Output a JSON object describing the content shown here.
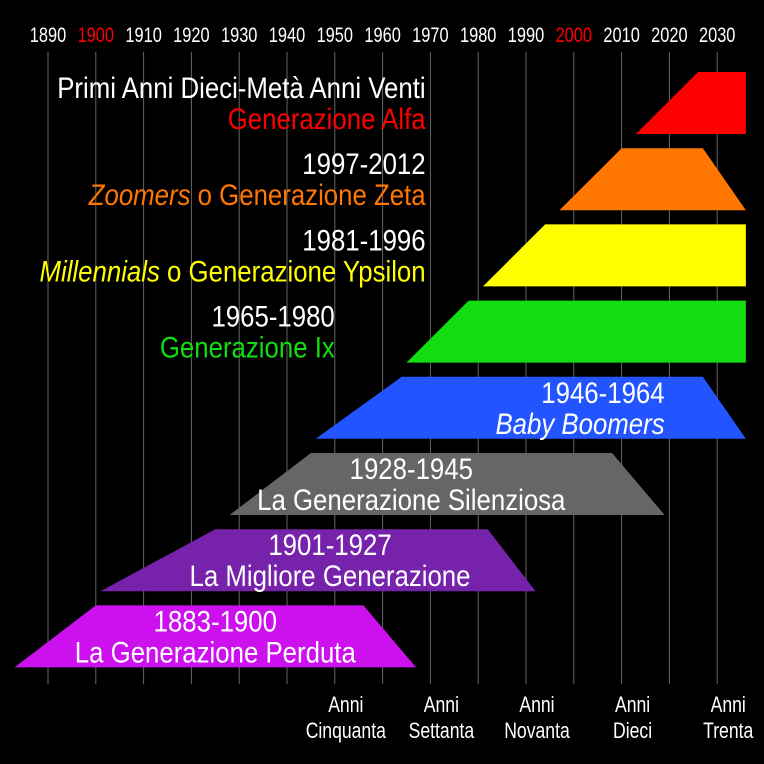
{
  "timeline": {
    "years": [
      {
        "label": "1890",
        "value": 1890
      },
      {
        "label": "1900",
        "value": 1900,
        "highlight": true
      },
      {
        "label": "1910",
        "value": 1910
      },
      {
        "label": "1920",
        "value": 1920
      },
      {
        "label": "1930",
        "value": 1930
      },
      {
        "label": "1940",
        "value": 1940
      },
      {
        "label": "1950",
        "value": 1950
      },
      {
        "label": "1960",
        "value": 1960
      },
      {
        "label": "1970",
        "value": 1970
      },
      {
        "label": "1980",
        "value": 1980
      },
      {
        "label": "1990",
        "value": 1990
      },
      {
        "label": "2000",
        "value": 2000,
        "highlight": true
      },
      {
        "label": "2010",
        "value": 2010
      },
      {
        "label": "2020",
        "value": 2020
      },
      {
        "label": "2030",
        "value": 2030
      }
    ],
    "year_color": "#ffffff",
    "highlight_color": "#ff0000",
    "gridline_color": "#666666"
  },
  "decades": [
    {
      "line1": "Anni",
      "line2": "Cinquanta",
      "center_year": 1950
    },
    {
      "line1": "Anni",
      "line2": "Settanta",
      "center_year": 1970
    },
    {
      "line1": "Anni",
      "line2": "Novanta",
      "center_year": 1990
    },
    {
      "line1": "Anni",
      "line2": "Dieci",
      "center_year": 2010
    },
    {
      "line1": "Anni",
      "line2": "Trenta",
      "center_year": 2030
    }
  ],
  "generations": [
    {
      "id": "alfa",
      "color": "#ff0000",
      "span": {
        "start_bottom": 2013,
        "start_top": 2026,
        "end_top": 2036,
        "end_bottom": 2036
      },
      "label_years": "Primi Anni Dieci-Metà Anni Venti",
      "label_name": [
        {
          "text": "Generazione Alfa",
          "italic": false
        }
      ],
      "years_color": "#ffffff",
      "name_color": "#ff0000",
      "label_anchor": "end",
      "label_year_pos": 1969
    },
    {
      "id": "zeta",
      "color": "#ff7700",
      "span": {
        "start_bottom": 1997,
        "start_top": 2010,
        "end_top": 2027,
        "end_bottom": 2036
      },
      "label_years": "1997-2012",
      "label_name": [
        {
          "text": "Zoomers",
          "italic": true
        },
        {
          "text": " o Generazione Zeta",
          "italic": false
        }
      ],
      "years_color": "#ffffff",
      "name_color": "#ff7700",
      "label_anchor": "end",
      "label_year_pos": 1969
    },
    {
      "id": "ypsilon",
      "color": "#ffff00",
      "span": {
        "start_bottom": 1981,
        "start_top": 1994,
        "end_top": 2036,
        "end_bottom": 2036
      },
      "label_years": "1981-1996",
      "label_name": [
        {
          "text": "Millennials",
          "italic": true
        },
        {
          "text": " o Generazione Ypsilon",
          "italic": false
        }
      ],
      "years_color": "#ffffff",
      "name_color": "#ffff00",
      "label_anchor": "end",
      "label_year_pos": 1969
    },
    {
      "id": "ix",
      "color": "#11dd11",
      "span": {
        "start_bottom": 1965,
        "start_top": 1978,
        "end_top": 2036,
        "end_bottom": 2036
      },
      "label_years": "1965-1980",
      "label_name": [
        {
          "text": "Generazione Ix",
          "italic": false
        }
      ],
      "years_color": "#ffffff",
      "name_color": "#11dd11",
      "label_anchor": "end",
      "label_year_pos": 1950
    },
    {
      "id": "boomers",
      "color": "#2255ff",
      "span": {
        "start_bottom": 1946,
        "start_top": 1964,
        "end_top": 2027,
        "end_bottom": 2036
      },
      "label_years": "1946-1964",
      "label_name": [
        {
          "text": "Baby Boomers",
          "italic": true
        }
      ],
      "years_color": "#ffffff",
      "name_color": "#ffffff",
      "label_anchor": "end",
      "label_year_pos": 2019
    },
    {
      "id": "silenziosa",
      "color": "#666666",
      "span": {
        "start_bottom": 1928,
        "start_top": 1945,
        "end_top": 2008,
        "end_bottom": 2019
      },
      "label_years": "1928-1945",
      "label_name": [
        {
          "text": "La Generazione Silenziosa",
          "italic": false
        }
      ],
      "years_color": "#ffffff",
      "name_color": "#ffffff",
      "label_anchor": "middle",
      "label_year_pos": 1966
    },
    {
      "id": "migliore",
      "color": "#7722aa",
      "span": {
        "start_bottom": 1901,
        "start_top": 1925,
        "end_top": 1982,
        "end_bottom": 1992
      },
      "label_years": "1901-1927",
      "label_name": [
        {
          "text": "La Migliore Generazione",
          "italic": false
        }
      ],
      "years_color": "#ffffff",
      "name_color": "#ffffff",
      "label_anchor": "middle",
      "label_year_pos": 1949
    },
    {
      "id": "perduta",
      "color": "#cc11ee",
      "span": {
        "start_bottom": 1883,
        "start_top": 1900,
        "end_top": 1956,
        "end_bottom": 1967
      },
      "label_years": "1883-1900",
      "label_name": [
        {
          "text": "La Generazione Perduta",
          "italic": false
        }
      ],
      "years_color": "#ffffff",
      "name_color": "#ffffff",
      "label_anchor": "middle",
      "label_year_pos": 1925
    }
  ]
}
